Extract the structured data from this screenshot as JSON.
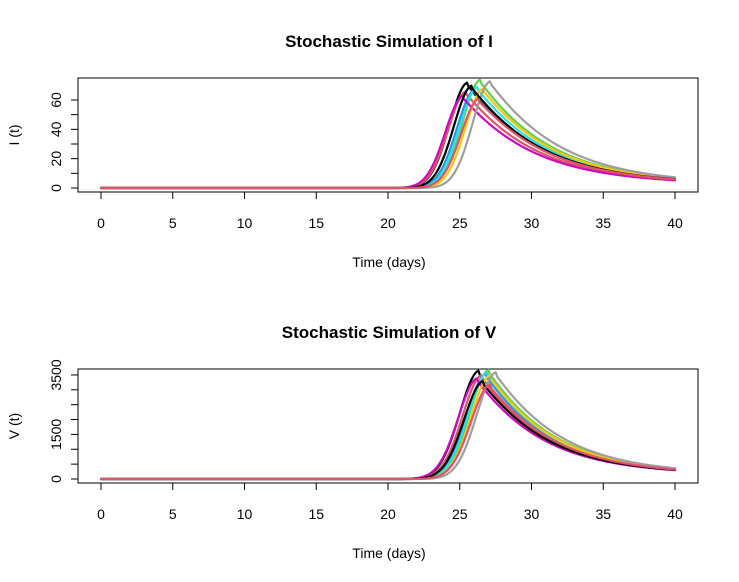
{
  "chart_data": [
    {
      "type": "line",
      "title": "Stochastic Simulation of I",
      "xlabel": "Time (days)",
      "ylabel": "I (t)",
      "xlim": [
        0,
        40
      ],
      "ylim": [
        0,
        75
      ],
      "x_ticks": [
        0,
        5,
        10,
        15,
        20,
        25,
        30,
        35,
        40
      ],
      "y_ticks": [
        0,
        10,
        20,
        30,
        40,
        50,
        60
      ],
      "y_tick_labels": [
        "0",
        "",
        "20",
        "",
        "40",
        "",
        "60"
      ],
      "y_tick_label_text": [
        "0",
        "20",
        "60"
      ],
      "grid": false,
      "legend": "none",
      "model": {
        "peak_start": 6,
        "onset_width": 1.3,
        "decay_rate": 0.21,
        "tail": 2.5
      },
      "series": [
        {
          "color": "#000000",
          "peak_time": 25.6,
          "peak_value": 72
        },
        {
          "color": "#DF536B",
          "peak_time": 25.5,
          "peak_value": 66
        },
        {
          "color": "#61D04F",
          "peak_time": 26.5,
          "peak_value": 74
        },
        {
          "color": "#2297E6",
          "peak_time": 26.1,
          "peak_value": 67
        },
        {
          "color": "#28E2E5",
          "peak_time": 26.3,
          "peak_value": 69
        },
        {
          "color": "#CD0BBC",
          "peak_time": 25.3,
          "peak_value": 63
        },
        {
          "color": "#F5C710",
          "peak_time": 26.7,
          "peak_value": 68
        },
        {
          "color": "#9E9E9E",
          "peak_time": 27.2,
          "peak_value": 73
        },
        {
          "color": "#000000",
          "peak_time": 25.9,
          "peak_value": 70
        },
        {
          "color": "#DF536B",
          "peak_time": 26.4,
          "peak_value": 61
        }
      ]
    },
    {
      "type": "line",
      "title": "Stochastic Simulation of V",
      "xlabel": "Time (days)",
      "ylabel": "V (t)",
      "xlim": [
        0,
        40
      ],
      "ylim": [
        0,
        3700
      ],
      "x_ticks": [
        0,
        5,
        10,
        15,
        20,
        25,
        30,
        35,
        40
      ],
      "y_ticks": [
        0,
        500,
        1000,
        1500,
        2000,
        2500,
        3000,
        3500
      ],
      "y_tick_labels": [
        "0",
        "",
        "",
        "1500",
        "",
        "",
        "",
        "3500"
      ],
      "y_tick_label_text": [
        "0",
        "1500",
        "3500"
      ],
      "grid": false,
      "legend": "none",
      "model": {
        "peak_start": 250,
        "onset_width": 1.4,
        "decay_rate": 0.225,
        "tail": 150
      },
      "series": [
        {
          "color": "#000000",
          "peak_time": 26.4,
          "peak_value": 3650
        },
        {
          "color": "#DF536B",
          "peak_time": 26.6,
          "peak_value": 3500
        },
        {
          "color": "#61D04F",
          "peak_time": 27.1,
          "peak_value": 3680
        },
        {
          "color": "#2297E6",
          "peak_time": 26.9,
          "peak_value": 3550
        },
        {
          "color": "#28E2E5",
          "peak_time": 27.0,
          "peak_value": 3600
        },
        {
          "color": "#CD0BBC",
          "peak_time": 26.3,
          "peak_value": 3400
        },
        {
          "color": "#F5C710",
          "peak_time": 27.2,
          "peak_value": 3500
        },
        {
          "color": "#9E9E9E",
          "peak_time": 27.6,
          "peak_value": 3600
        },
        {
          "color": "#000000",
          "peak_time": 26.7,
          "peak_value": 3300
        },
        {
          "color": "#DF536B",
          "peak_time": 27.2,
          "peak_value": 3200
        }
      ]
    }
  ]
}
